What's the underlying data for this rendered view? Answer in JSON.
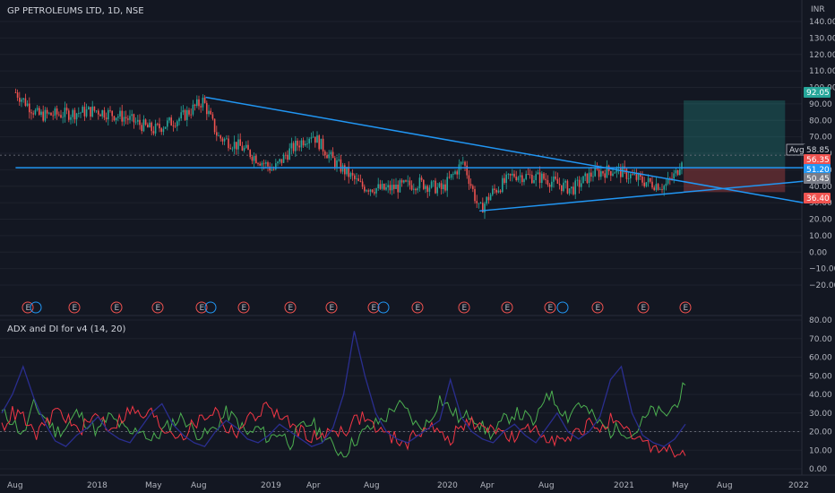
{
  "chart_data": [
    {
      "type": "candlestick",
      "title": "GP PETROLEUMS LTD, 1D, NSE",
      "currency": "INR",
      "x_ticks": [
        "Aug",
        "2018",
        "May",
        "Aug",
        "2019",
        "Apr",
        "Aug",
        "2020",
        "Apr",
        "Aug",
        "2021",
        "May",
        "Aug",
        "2022"
      ],
      "y_ticks": [
        "140.00",
        "130.00",
        "120.00",
        "110.00",
        "100.00",
        "90.00",
        "80.00",
        "70.00",
        "60.00",
        "50.00",
        "40.00",
        "30.00",
        "20.00",
        "10.00",
        "0.00",
        "−10.00",
        "−20.00"
      ],
      "y_ticks_num": [
        140,
        130,
        120,
        110,
        100,
        90,
        80,
        70,
        60,
        50,
        40,
        30,
        20,
        10,
        0,
        -10,
        -20
      ],
      "ylim": [
        -25,
        142
      ],
      "price_path": [
        {
          "t": "2017-07-15",
          "v": 97
        },
        {
          "t": "2017-09-01",
          "v": 83
        },
        {
          "t": "2017-11-01",
          "v": 84
        },
        {
          "t": "2018-01-01",
          "v": 86
        },
        {
          "t": "2018-03-01",
          "v": 82
        },
        {
          "t": "2018-05-01",
          "v": 74
        },
        {
          "t": "2018-07-01",
          "v": 82
        },
        {
          "t": "2018-08-15",
          "v": 92
        },
        {
          "t": "2018-09-15",
          "v": 70
        },
        {
          "t": "2018-11-01",
          "v": 64
        },
        {
          "t": "2019-01-10",
          "v": 50
        },
        {
          "t": "2019-02-15",
          "v": 62
        },
        {
          "t": "2019-04-01",
          "v": 72
        },
        {
          "t": "2019-05-15",
          "v": 56
        },
        {
          "t": "2019-07-15",
          "v": 40
        },
        {
          "t": "2019-09-01",
          "v": 38
        },
        {
          "t": "2019-11-15",
          "v": 42
        },
        {
          "t": "2020-01-01",
          "v": 38
        },
        {
          "t": "2020-02-15",
          "v": 55
        },
        {
          "t": "2020-03-20",
          "v": 25
        },
        {
          "t": "2020-04-15",
          "v": 36
        },
        {
          "t": "2020-06-01",
          "v": 47
        },
        {
          "t": "2020-08-01",
          "v": 45
        },
        {
          "t": "2020-10-01",
          "v": 38
        },
        {
          "t": "2020-11-15",
          "v": 48
        },
        {
          "t": "2021-01-01",
          "v": 50
        },
        {
          "t": "2021-03-01",
          "v": 43
        },
        {
          "t": "2021-04-15",
          "v": 40
        },
        {
          "t": "2021-05-10",
          "v": 48
        },
        {
          "t": "2021-05-25",
          "v": 61
        }
      ],
      "trendlines": [
        {
          "from": {
            "t": "2018-08-20",
            "v": 94
          },
          "to": {
            "t": "2022-02-01",
            "v": 30
          }
        },
        {
          "from": {
            "t": "2020-03-20",
            "v": 25
          },
          "to": {
            "t": "2022-02-01",
            "v": 43
          }
        },
        {
          "from": {
            "t": "2017-07-15",
            "v": 51.2
          },
          "to": {
            "t": "2022-02-01",
            "v": 51.2
          }
        }
      ],
      "position": {
        "start": "2021-05-25",
        "end": "2021-12-25",
        "entry": 51.2,
        "target": 92.05,
        "stop": 36.4
      },
      "earnings_markers": [
        "E",
        "E",
        "E",
        "E",
        "E",
        "E",
        "E",
        "E",
        "E",
        "E",
        "E",
        "E",
        "E",
        "E",
        "E",
        "E",
        "E"
      ],
      "dividend_markers": [
        "D",
        "D",
        "D",
        "D"
      ],
      "price_tags": [
        {
          "label": "92.05",
          "color": "#26a69a"
        },
        {
          "label": "Avg",
          "value": "58.85",
          "color": "#d1d4dc"
        },
        {
          "label": "56.35",
          "color": "#ef5350"
        },
        {
          "label": "51.20",
          "color": "#2196f3"
        },
        {
          "label": "50.45",
          "color": "#787b86"
        },
        {
          "label": "36.40",
          "color": "#ef5350"
        }
      ]
    },
    {
      "type": "line",
      "title": "ADX and DI for v4 (14, 20)",
      "y_ticks": [
        "80.00",
        "70.00",
        "60.00",
        "50.00",
        "40.00",
        "30.00",
        "20.00",
        "10.00",
        "0.00"
      ],
      "y_ticks_num": [
        80,
        70,
        60,
        50,
        40,
        30,
        20,
        10,
        0
      ],
      "ylim": [
        -5,
        80
      ],
      "threshold": 20,
      "series": [
        {
          "color": "#4caf50",
          "values": [
            30,
            26,
            18,
            34,
            28,
            20,
            22,
            30,
            25,
            20,
            28,
            24,
            18,
            22,
            15,
            20,
            25,
            28,
            20,
            18,
            22,
            30,
            26,
            18,
            22,
            16,
            20,
            14,
            22,
            25,
            18,
            12,
            8,
            15,
            20,
            24,
            28,
            35,
            30,
            22,
            25,
            38,
            32,
            26,
            30,
            22,
            18,
            26,
            30,
            28,
            24,
            42,
            35,
            28,
            36,
            30,
            24,
            20,
            22,
            18,
            25,
            32,
            28,
            34,
            45
          ]
        },
        {
          "color": "#f23645",
          "values": [
            22,
            30,
            28,
            18,
            22,
            32,
            28,
            20,
            24,
            30,
            22,
            26,
            32,
            28,
            30,
            22,
            20,
            18,
            24,
            28,
            32,
            22,
            20,
            26,
            30,
            34,
            28,
            24,
            20,
            18,
            16,
            22,
            20,
            26,
            28,
            22,
            18,
            16,
            14,
            20,
            24,
            18,
            16,
            22,
            26,
            20,
            24,
            18,
            16,
            20,
            22,
            18,
            16,
            14,
            20,
            24,
            22,
            26,
            20,
            18,
            14,
            12,
            10,
            9,
            7
          ]
        },
        {
          "color": "#2a2e8f",
          "values": [
            30,
            40,
            55,
            38,
            25,
            15,
            12,
            18,
            22,
            28,
            20,
            16,
            14,
            22,
            30,
            35,
            24,
            18,
            14,
            12,
            20,
            26,
            22,
            16,
            14,
            18,
            24,
            20,
            16,
            12,
            14,
            22,
            40,
            74,
            50,
            30,
            20,
            16,
            14,
            18,
            22,
            26,
            48,
            28,
            20,
            16,
            14,
            20,
            24,
            18,
            14,
            22,
            30,
            20,
            16,
            20,
            28,
            48,
            55,
            30,
            18,
            14,
            12,
            16,
            24
          ]
        }
      ]
    }
  ]
}
